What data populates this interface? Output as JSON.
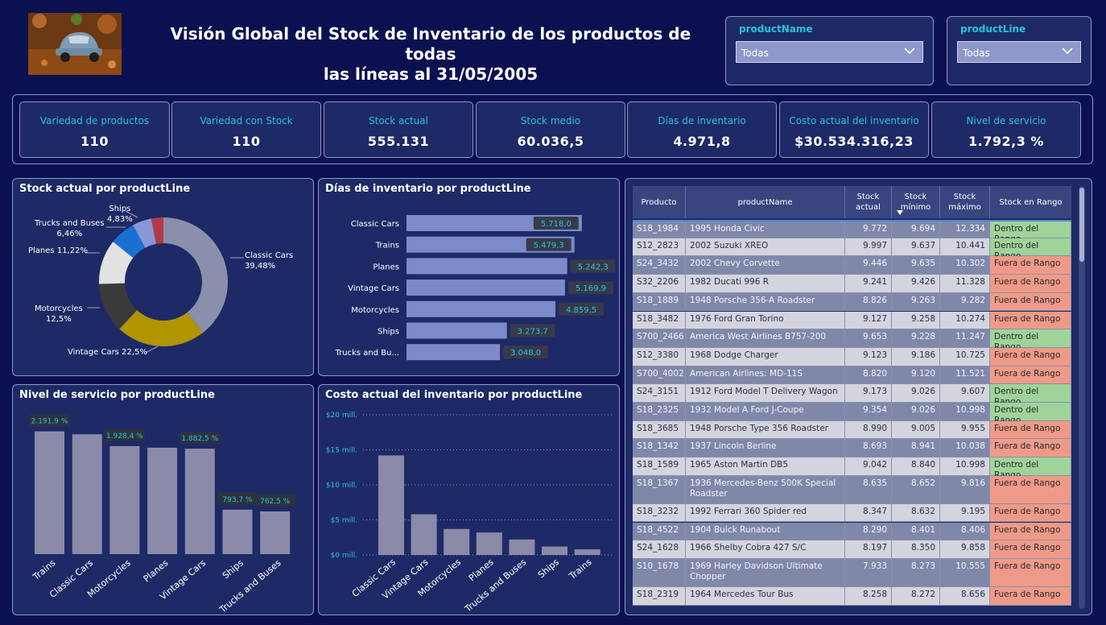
{
  "header": {
    "title_line1": "Visión Global del Stock de Inventario de los productos de todas",
    "title_line2": "las líneas al 31/05/2005"
  },
  "filters": [
    {
      "label": "productName",
      "value": "Todas"
    },
    {
      "label": "productLine",
      "value": "Todas"
    }
  ],
  "kpis": [
    {
      "label": "Variedad de productos",
      "value": "110"
    },
    {
      "label": "Variedad con Stock",
      "value": "110"
    },
    {
      "label": "Stock actual",
      "value": "555.131"
    },
    {
      "label": "Stock medio",
      "value": "60.036,5"
    },
    {
      "label": "Días de inventario",
      "value": "4.971,8"
    },
    {
      "label": "Costo actual del inventario",
      "value": "$30.534.316,23"
    },
    {
      "label": "Nivel de servicio",
      "value": "1.792,3 %"
    }
  ],
  "colors": {
    "background": "#0b1150",
    "panel": "#1e2a66",
    "accent": "#27c4d6",
    "bar": "#7b8ac8",
    "gray_bar": "#8b8aa8",
    "in_range": "#9fd39a",
    "out_range": "#ef9a88"
  },
  "donut": {
    "title": "Stock actual por productLine",
    "chart_data": {
      "type": "pie",
      "slices": [
        {
          "name": "Classic Cars",
          "value": 39.48,
          "label": "39,48%",
          "color": "#8a8fab"
        },
        {
          "name": "Vintage Cars",
          "value": 22.5,
          "label": "22,5%",
          "color": "#b09400"
        },
        {
          "name": "Motorcycles",
          "value": 12.5,
          "label": "12,5%",
          "color": "#3a3a3a"
        },
        {
          "name": "Planes",
          "value": 11.22,
          "label": "11,22%",
          "color": "#e2e2e2"
        },
        {
          "name": "Trucks and Buses",
          "value": 6.46,
          "label": "6,46%",
          "color": "#1b6fd1"
        },
        {
          "name": "Ships",
          "value": 4.83,
          "label": "4,83%",
          "color": "#8896d8"
        },
        {
          "name": "Trains",
          "value": 3.01,
          "label": "",
          "color": "#b23a48"
        }
      ]
    }
  },
  "dias": {
    "title": "Días de inventario por productLine",
    "chart_data": {
      "type": "bar",
      "orientation": "horizontal",
      "categories": [
        "Classic Cars",
        "Trains",
        "Planes",
        "Vintage Cars",
        "Motorcycles",
        "Ships",
        "Trucks and Bu..."
      ],
      "values": [
        5718.0,
        5479.3,
        5242.3,
        5169.9,
        4859.5,
        3273.7,
        3048.0
      ],
      "labels": [
        "5.718,0",
        "5.479,3",
        "5.242,3",
        "5.169,9",
        "4.859,5",
        "3.273,7",
        "3.048,0"
      ],
      "xlim": [
        0,
        5750
      ]
    }
  },
  "servicio": {
    "title": "Nivel de servicio por productLine",
    "chart_data": {
      "type": "bar",
      "categories": [
        "Trains",
        "Classic Cars",
        "Motorcycles",
        "Planes",
        "Vintage Cars",
        "Ships",
        "Trucks and Buses"
      ],
      "values": [
        2191.9,
        2140,
        1928.4,
        1900,
        1882.5,
        793.7,
        762.5
      ],
      "labels": [
        "2.191,9 %",
        "",
        "1.928,4 %",
        "",
        "1.882,5 %",
        "793,7 %",
        "762,5 %"
      ],
      "ylim": [
        0,
        2200
      ]
    }
  },
  "costo": {
    "title": "Costo actual del inventario por productLine",
    "chart_data": {
      "type": "bar",
      "categories": [
        "Classic Cars",
        "Vintage Cars",
        "Motorcycles",
        "Planes",
        "Trucks and Buses",
        "Ships",
        "Trains"
      ],
      "values": [
        14.2,
        5.8,
        3.7,
        3.2,
        2.2,
        1.2,
        0.8
      ],
      "ylim": [
        0,
        20
      ],
      "yticks": [
        {
          "value": 20,
          "label": "$20 mill."
        },
        {
          "value": 15,
          "label": "$15 mill."
        },
        {
          "value": 10,
          "label": "$10 mill."
        },
        {
          "value": 5,
          "label": "$5 mill."
        },
        {
          "value": 0,
          "label": "$0 mill."
        }
      ]
    }
  },
  "table": {
    "columns": [
      "Producto",
      "productName",
      "Stock actual",
      "Stock mínimo",
      "Stock máximo",
      "Stock en Rango"
    ],
    "rows": [
      [
        "S18_1984",
        "1995 Honda Civic",
        "9.772",
        "9.694",
        "12.334",
        "Dentro del Rango"
      ],
      [
        "S12_2823",
        "2002 Suzuki XREO",
        "9.997",
        "9.637",
        "10.441",
        "Dentro del Rango"
      ],
      [
        "S24_3432",
        "2002 Chevy Corvette",
        "9.446",
        "9.635",
        "10.302",
        "Fuera de Rango"
      ],
      [
        "S32_2206",
        "1982 Ducati 996 R",
        "9.241",
        "9.426",
        "11.328",
        "Fuera de Rango"
      ],
      [
        "S18_1889",
        "1948 Porsche 356-A Roadster",
        "8.826",
        "9.263",
        "9.282",
        "Fuera de Rango"
      ],
      [
        "S18_3482",
        "1976 Ford Gran Torino",
        "9.127",
        "9.258",
        "10.274",
        "Fuera de Rango"
      ],
      [
        "S700_2466",
        "America West Airlines B757-200",
        "9.653",
        "9.228",
        "11.247",
        "Dentro del Rango"
      ],
      [
        "S12_3380",
        "1968 Dodge Charger",
        "9.123",
        "9.186",
        "10.725",
        "Fuera de Rango"
      ],
      [
        "S700_4002",
        "American Airlines: MD-11S",
        "8.820",
        "9.120",
        "11.521",
        "Fuera de Rango"
      ],
      [
        "S24_3151",
        "1912 Ford Model T Delivery Wagon",
        "9.173",
        "9.026",
        "9.607",
        "Dentro del Rango"
      ],
      [
        "S18_2325",
        "1932 Model A Ford J-Coupe",
        "9.354",
        "9.026",
        "10.998",
        "Dentro del Rango"
      ],
      [
        "S18_3685",
        "1948 Porsche Type 356 Roadster",
        "8.990",
        "9.005",
        "9.955",
        "Fuera de Rango"
      ],
      [
        "S18_1342",
        "1937 Lincoln Berline",
        "8.693",
        "8.941",
        "10.038",
        "Fuera de Rango"
      ],
      [
        "S18_1589",
        "1965 Aston Martin DB5",
        "9.042",
        "8.840",
        "10.998",
        "Dentro del Rango"
      ],
      [
        "S18_1367",
        "1936 Mercedes-Benz 500K Special Roadster",
        "8.635",
        "8.652",
        "9.816",
        "Fuera de Rango"
      ],
      [
        "S18_3232",
        "1992 Ferrari 360 Spider red",
        "8.347",
        "8.632",
        "9.195",
        "Fuera de Rango"
      ],
      [
        "S18_4522",
        "1904 Buick Runabout",
        "8.290",
        "8.401",
        "8.406",
        "Fuera de Rango"
      ],
      [
        "S24_1628",
        "1966 Shelby Cobra 427 S/C",
        "8.197",
        "8.350",
        "9.858",
        "Fuera de Rango"
      ],
      [
        "S10_1678",
        "1969 Harley Davidson Ultimate Chopper",
        "7.933",
        "8.273",
        "10.555",
        "Fuera de Rango"
      ],
      [
        "S18_2319",
        "1964 Mercedes Tour Bus",
        "8.258",
        "8.272",
        "8.656",
        "Fuera de Rango"
      ]
    ]
  }
}
